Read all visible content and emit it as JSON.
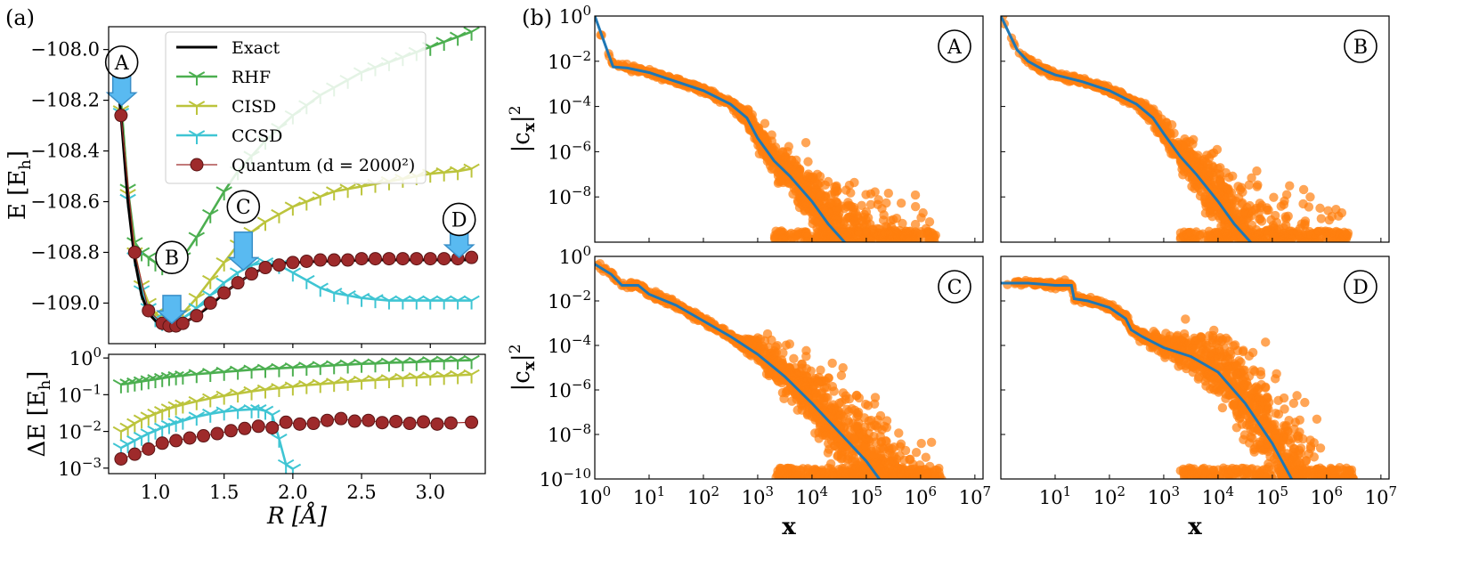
{
  "chart_data": [
    {
      "id": "a-top",
      "panel_label": "(a)",
      "type": "line",
      "ylabel": "E [E_h]",
      "xlabel": "",
      "xlim": [
        0.66,
        3.4
      ],
      "ylim": [
        -109.16,
        -107.91
      ],
      "ytick_labels": [
        "−108.0",
        "−108.2",
        "−108.4",
        "−108.6",
        "−108.8",
        "−109.0"
      ],
      "yticks": [
        -108.0,
        -108.2,
        -108.4,
        -108.6,
        -108.8,
        -109.0
      ],
      "legend": {
        "location": "top-right",
        "entries": [
          "Exact",
          "RHF",
          "CISD",
          "CCSD",
          "Quantum (d = 2000²)"
        ]
      },
      "colors": {
        "Exact": "#000000",
        "RHF": "#4caf50",
        "CISD": "#bcc43c",
        "CCSD": "#3fc5d3",
        "Quantum": "#9e2a2b",
        "arrow": "#59baf1",
        "arrow_edge": "#3a8fc8"
      },
      "series": [
        {
          "name": "Exact",
          "style": "line",
          "x": [
            0.7,
            0.75,
            0.8,
            0.85,
            0.9,
            0.95,
            1.0,
            1.05,
            1.1,
            1.15,
            1.2,
            1.3,
            1.4,
            1.5,
            1.6,
            1.7,
            1.8,
            1.9,
            2.0,
            2.2,
            2.4,
            2.6,
            2.8,
            3.0,
            3.2,
            3.3
          ],
          "y": [
            -108.0,
            -108.26,
            -108.6,
            -108.83,
            -108.97,
            -109.04,
            -109.07,
            -109.085,
            -109.09,
            -109.09,
            -109.08,
            -109.05,
            -109.01,
            -108.96,
            -108.92,
            -108.885,
            -108.86,
            -108.845,
            -108.84,
            -108.835,
            -108.832,
            -108.83,
            -108.83,
            -108.83,
            -108.83,
            -108.83
          ]
        },
        {
          "name": "RHF",
          "style": "tri-marker",
          "x": [
            0.75,
            0.8,
            0.85,
            0.9,
            0.95,
            1.0,
            1.05,
            1.1,
            1.15,
            1.2,
            1.3,
            1.4,
            1.5,
            1.6,
            1.7,
            1.8,
            1.9,
            2.0,
            2.1,
            2.2,
            2.3,
            2.4,
            2.5,
            2.6,
            2.7,
            2.8,
            2.9,
            3.0,
            3.1,
            3.2,
            3.3
          ],
          "y": [
            -108.2,
            -108.55,
            -108.76,
            -108.8,
            -108.82,
            -108.84,
            -108.855,
            -108.85,
            -108.84,
            -108.82,
            -108.74,
            -108.65,
            -108.56,
            -108.48,
            -108.42,
            -108.36,
            -108.31,
            -108.26,
            -108.22,
            -108.18,
            -108.15,
            -108.12,
            -108.09,
            -108.07,
            -108.05,
            -108.03,
            -108.01,
            -107.99,
            -107.97,
            -107.95,
            -107.93
          ]
        },
        {
          "name": "CISD",
          "style": "tri-marker",
          "x": [
            0.75,
            0.8,
            0.85,
            0.9,
            0.95,
            1.0,
            1.05,
            1.1,
            1.15,
            1.2,
            1.3,
            1.4,
            1.5,
            1.6,
            1.7,
            1.8,
            1.9,
            2.0,
            2.1,
            2.2,
            2.3,
            2.4,
            2.5,
            2.6,
            2.7,
            2.8,
            2.9,
            3.0,
            3.1,
            3.2,
            3.3
          ],
          "y": [
            -108.24,
            -108.57,
            -108.8,
            -108.93,
            -109.0,
            -109.04,
            -109.06,
            -109.065,
            -109.06,
            -109.04,
            -108.98,
            -108.91,
            -108.84,
            -108.77,
            -108.72,
            -108.68,
            -108.65,
            -108.62,
            -108.6,
            -108.58,
            -108.56,
            -108.55,
            -108.54,
            -108.53,
            -108.52,
            -108.51,
            -108.5,
            -108.49,
            -108.485,
            -108.48,
            -108.47
          ]
        },
        {
          "name": "CCSD",
          "style": "tri-marker",
          "x": [
            0.75,
            0.8,
            0.85,
            0.9,
            0.95,
            1.0,
            1.05,
            1.1,
            1.15,
            1.2,
            1.3,
            1.4,
            1.5,
            1.6,
            1.7,
            1.8,
            1.9,
            2.0,
            2.1,
            2.2,
            2.3,
            2.4,
            2.5,
            2.6,
            2.7,
            2.8,
            2.9,
            3.0,
            3.1,
            3.2,
            3.3
          ],
          "y": [
            -108.25,
            -108.59,
            -108.82,
            -108.95,
            -109.02,
            -109.06,
            -109.075,
            -109.08,
            -109.075,
            -109.06,
            -109.02,
            -108.97,
            -108.92,
            -108.88,
            -108.85,
            -108.84,
            -108.85,
            -108.88,
            -108.91,
            -108.94,
            -108.96,
            -108.97,
            -108.98,
            -108.985,
            -108.99,
            -108.99,
            -108.99,
            -108.99,
            -108.99,
            -108.99,
            -108.99
          ]
        },
        {
          "name": "Quantum",
          "style": "circle-marker",
          "x": [
            0.75,
            0.85,
            0.95,
            1.05,
            1.1,
            1.15,
            1.2,
            1.3,
            1.4,
            1.5,
            1.6,
            1.7,
            1.8,
            1.9,
            2.0,
            2.1,
            2.2,
            2.3,
            2.4,
            2.5,
            2.6,
            2.7,
            2.8,
            2.9,
            3.0,
            3.1,
            3.2,
            3.3
          ],
          "y": [
            -108.26,
            -108.8,
            -109.03,
            -109.08,
            -109.09,
            -109.09,
            -109.08,
            -109.05,
            -109.0,
            -108.96,
            -108.92,
            -108.885,
            -108.86,
            -108.85,
            -108.84,
            -108.835,
            -108.83,
            -108.83,
            -108.83,
            -108.825,
            -108.825,
            -108.825,
            -108.825,
            -108.825,
            -108.825,
            -108.825,
            -108.825,
            -108.82
          ]
        }
      ],
      "annotations": [
        {
          "label": "A",
          "x": 0.755,
          "y": -108.05
        },
        {
          "label": "B",
          "x": 1.12,
          "y": -108.82
        },
        {
          "label": "C",
          "x": 1.64,
          "y": -108.62
        },
        {
          "label": "D",
          "x": 3.21,
          "y": -108.67
        }
      ],
      "arrows": [
        {
          "x": 0.755,
          "y_from": -108.1,
          "y_to": -108.22
        },
        {
          "x": 1.12,
          "y_from": -108.97,
          "y_to": -109.08
        },
        {
          "x": 1.64,
          "y_from": -108.72,
          "y_to": -108.87
        },
        {
          "x": 3.21,
          "y_from": -108.69,
          "y_to": -108.82
        }
      ]
    },
    {
      "id": "a-bottom",
      "type": "line",
      "ylabel": "ΔE [E_h]",
      "xlabel": "R [Å]",
      "yscale": "log",
      "xlim": [
        0.66,
        3.4
      ],
      "ylim_log10": [
        -3.15,
        0.1
      ],
      "xticks": [
        1.0,
        1.5,
        2.0,
        2.5,
        3.0
      ],
      "xtick_labels": [
        "1.0",
        "1.5",
        "2.0",
        "2.5",
        "3.0"
      ],
      "ytick_exponents": [
        0,
        -1,
        -2,
        -3
      ],
      "series": [
        {
          "name": "RHF",
          "style": "tri-marker",
          "x": [
            0.75,
            0.8,
            0.85,
            0.9,
            0.95,
            1.0,
            1.05,
            1.1,
            1.15,
            1.2,
            1.3,
            1.4,
            1.5,
            1.6,
            1.7,
            1.8,
            1.9,
            2.0,
            2.1,
            2.2,
            2.3,
            2.4,
            2.5,
            2.6,
            2.7,
            2.8,
            2.9,
            3.0,
            3.1,
            3.2,
            3.3
          ],
          "log10": [
            -0.72,
            -0.7,
            -0.67,
            -0.64,
            -0.61,
            -0.58,
            -0.55,
            -0.52,
            -0.5,
            -0.48,
            -0.44,
            -0.41,
            -0.38,
            -0.35,
            -0.32,
            -0.3,
            -0.28,
            -0.26,
            -0.24,
            -0.22,
            -0.2,
            -0.18,
            -0.16,
            -0.15,
            -0.13,
            -0.12,
            -0.11,
            -0.09,
            -0.08,
            -0.07,
            -0.06
          ]
        },
        {
          "name": "CISD",
          "style": "tri-marker",
          "x": [
            0.75,
            0.8,
            0.85,
            0.9,
            0.95,
            1.0,
            1.05,
            1.1,
            1.15,
            1.2,
            1.3,
            1.4,
            1.5,
            1.6,
            1.7,
            1.8,
            1.9,
            2.0,
            2.1,
            2.2,
            2.3,
            2.4,
            2.5,
            2.6,
            2.7,
            2.8,
            2.9,
            3.0,
            3.1,
            3.2,
            3.3
          ],
          "log10": [
            -2.0,
            -1.9,
            -1.78,
            -1.68,
            -1.6,
            -1.52,
            -1.45,
            -1.38,
            -1.32,
            -1.27,
            -1.18,
            -1.1,
            -1.03,
            -0.97,
            -0.91,
            -0.86,
            -0.82,
            -0.78,
            -0.74,
            -0.71,
            -0.68,
            -0.65,
            -0.62,
            -0.6,
            -0.58,
            -0.55,
            -0.53,
            -0.51,
            -0.49,
            -0.47,
            -0.45
          ]
        },
        {
          "name": "CCSD",
          "style": "tri-marker",
          "x": [
            0.75,
            0.8,
            0.85,
            0.9,
            0.95,
            1.0,
            1.05,
            1.1,
            1.15,
            1.2,
            1.3,
            1.4,
            1.5,
            1.6,
            1.7,
            1.75,
            1.8,
            1.85,
            1.9,
            1.95,
            2.0
          ],
          "log10": [
            -2.45,
            -2.35,
            -2.25,
            -2.15,
            -2.06,
            -1.98,
            -1.9,
            -1.83,
            -1.77,
            -1.71,
            -1.6,
            -1.52,
            -1.46,
            -1.42,
            -1.4,
            -1.4,
            -1.44,
            -1.55,
            -2.2,
            -2.9,
            -3.02
          ]
        },
        {
          "name": "Quantum",
          "style": "circle-marker",
          "x": [
            0.75,
            0.85,
            0.95,
            1.05,
            1.15,
            1.25,
            1.35,
            1.45,
            1.55,
            1.65,
            1.75,
            1.85,
            1.95,
            2.05,
            2.15,
            2.25,
            2.35,
            2.45,
            2.55,
            2.65,
            2.75,
            2.85,
            2.95,
            3.05,
            3.15,
            3.3
          ],
          "log10": [
            -2.75,
            -2.62,
            -2.48,
            -2.32,
            -2.25,
            -2.18,
            -2.12,
            -2.06,
            -1.98,
            -1.92,
            -1.86,
            -1.9,
            -1.75,
            -1.8,
            -1.78,
            -1.7,
            -1.65,
            -1.72,
            -1.7,
            -1.76,
            -1.73,
            -1.78,
            -1.74,
            -1.8,
            -1.77,
            -1.75
          ]
        }
      ]
    },
    {
      "id": "b",
      "panel_label": "(b)",
      "type": "scatter",
      "xlabel": "x",
      "ylabel": "|c_x|²",
      "xscale": "log",
      "yscale": "log",
      "xlim_log10": [
        0,
        7.15
      ],
      "ylim_log10": [
        -10,
        0
      ],
      "xtick_exponents": [
        0,
        1,
        2,
        3,
        4,
        5,
        6,
        7
      ],
      "ytick_exponents": [
        0,
        -2,
        -4,
        -6,
        -8,
        -10
      ],
      "colors": {
        "points": "#ff7f0e",
        "curve": "#1f77b4"
      },
      "panels": [
        {
          "label": "A",
          "max_log10x": 6.3,
          "curve": {
            "log10x": [
              0,
              0.33,
              0.34,
              0.6,
              1.0,
              1.5,
              2.0,
              2.5,
              2.8,
              3.0,
              3.3,
              3.6,
              4.0,
              4.3,
              4.6,
              4.8
            ],
            "log10y": [
              0,
              -2.2,
              -2.25,
              -2.3,
              -2.5,
              -2.9,
              -3.3,
              -3.9,
              -4.5,
              -5.4,
              -6.4,
              -7.1,
              -8.2,
              -9.2,
              -10.0,
              -10.4
            ]
          }
        },
        {
          "label": "B",
          "max_log10x": 6.4,
          "curve": {
            "log10x": [
              0,
              0.3,
              0.5,
              0.8,
              1.0,
              1.5,
              2.0,
              2.5,
              2.8,
              3.0,
              3.3,
              3.6,
              4.0,
              4.3,
              4.6,
              4.8
            ],
            "log10y": [
              0,
              -1.5,
              -2.0,
              -2.4,
              -2.6,
              -2.9,
              -3.3,
              -3.9,
              -4.5,
              -5.2,
              -6.2,
              -7.0,
              -8.2,
              -9.2,
              -10.0,
              -10.4
            ]
          }
        },
        {
          "label": "C",
          "max_log10x": 6.4,
          "curve": {
            "log10x": [
              0,
              0.3,
              0.5,
              0.8,
              1.0,
              1.5,
              2.0,
              2.5,
              3.0,
              3.5,
              4.0,
              4.5,
              5.0,
              5.3
            ],
            "log10y": [
              -0.35,
              -0.8,
              -1.3,
              -1.3,
              -1.7,
              -2.2,
              -2.9,
              -3.6,
              -4.4,
              -5.4,
              -6.6,
              -7.9,
              -9.2,
              -10.2
            ]
          }
        },
        {
          "label": "D",
          "max_log10x": 6.5,
          "curve": {
            "log10x": [
              0,
              0.5,
              1.0,
              1.3,
              1.35,
              1.6,
              2.0,
              2.3,
              2.4,
              2.6,
              3.0,
              3.5,
              4.0,
              4.5,
              5.0,
              5.4
            ],
            "log10y": [
              -1.2,
              -1.2,
              -1.3,
              -1.3,
              -1.9,
              -2.0,
              -2.3,
              -2.8,
              -3.3,
              -3.6,
              -4.1,
              -4.5,
              -5.2,
              -6.6,
              -8.4,
              -10.2
            ]
          }
        }
      ]
    }
  ]
}
